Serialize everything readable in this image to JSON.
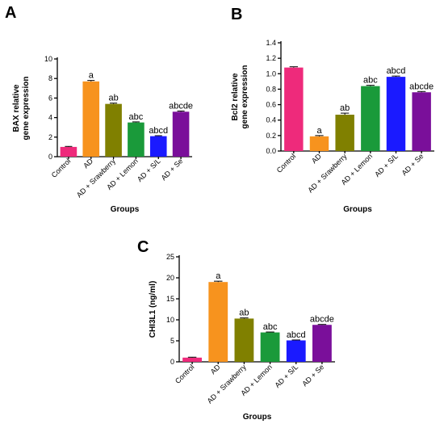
{
  "chart_data": [
    {
      "panel": "A",
      "type": "bar",
      "categories": [
        "Control",
        "AD",
        "AD + Srawberry",
        "AD + Lemon",
        "AD + S/L",
        "AD + Se"
      ],
      "values": [
        1.0,
        7.7,
        5.4,
        3.5,
        2.1,
        4.6
      ],
      "errors": [
        0.05,
        0.1,
        0.08,
        0.06,
        0.05,
        0.07
      ],
      "labels": [
        "",
        "a",
        "ab",
        "abc",
        "abcd",
        "abcde"
      ],
      "colors": [
        "#ee2a7b",
        "#f7931e",
        "#808000",
        "#1a9a3a",
        "#1a1aff",
        "#7a0f9a"
      ],
      "ylabel": [
        "BAX relative",
        "gene expression"
      ],
      "xlabel": "Groups",
      "ylim": [
        0,
        10
      ],
      "yticks": [
        0,
        2,
        4,
        6,
        8,
        10
      ],
      "grid": false
    },
    {
      "panel": "B",
      "type": "bar",
      "categories": [
        "Control",
        "AD",
        "AD + Srawberry",
        "AD + Lemon",
        "AD + S/L",
        "AD + Se"
      ],
      "values": [
        1.08,
        0.19,
        0.47,
        0.84,
        0.96,
        0.76
      ],
      "errors": [
        0.01,
        0.01,
        0.02,
        0.01,
        0.01,
        0.01
      ],
      "labels": [
        "",
        "a",
        "ab",
        "abc",
        "abcd",
        "abcde"
      ],
      "colors": [
        "#ee2a7b",
        "#f7931e",
        "#808000",
        "#1a9a3a",
        "#1a1aff",
        "#7a0f9a"
      ],
      "ylabel": [
        "Bcl2 relative",
        "gene expression"
      ],
      "xlabel": "Groups",
      "ylim": [
        0,
        1.4
      ],
      "yticks": [
        "0.0",
        "0.2",
        "0.4",
        "0.6",
        "0.8",
        "1.0",
        "1.2",
        "1.4"
      ],
      "grid": false
    },
    {
      "panel": "C",
      "type": "bar",
      "categories": [
        "Control",
        "AD",
        "AD + Srawberry",
        "AD + Lemon",
        "AD + S/L",
        "AD + Se"
      ],
      "values": [
        1.0,
        19.0,
        10.3,
        7.0,
        5.1,
        8.8
      ],
      "errors": [
        0.1,
        0.2,
        0.15,
        0.1,
        0.1,
        0.1
      ],
      "labels": [
        "",
        "a",
        "ab",
        "abc",
        "abcd",
        "abcde"
      ],
      "colors": [
        "#ee2a7b",
        "#f7931e",
        "#808000",
        "#1a9a3a",
        "#1a1aff",
        "#7a0f9a"
      ],
      "ylabel": [
        "CHI3L1 (ng/ml)"
      ],
      "xlabel": "Groups",
      "ylim": [
        0,
        25
      ],
      "yticks": [
        0,
        5,
        10,
        15,
        20,
        25
      ],
      "grid": false
    }
  ]
}
